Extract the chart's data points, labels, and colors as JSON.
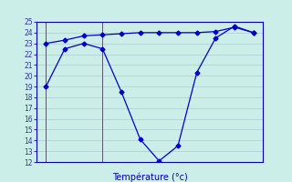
{
  "x_low": [
    0,
    1,
    2,
    3,
    4,
    5,
    6,
    7,
    8,
    9,
    10,
    11
  ],
  "line_low": [
    19.0,
    22.5,
    23.0,
    22.5,
    18.5,
    14.1,
    12.1,
    13.5,
    20.3,
    23.5,
    24.6,
    24.0
  ],
  "x_high": [
    0,
    1,
    2,
    3,
    4,
    5,
    6,
    7,
    8,
    9,
    10,
    11
  ],
  "line_high": [
    23.0,
    23.3,
    23.7,
    23.8,
    23.9,
    24.0,
    24.0,
    24.0,
    24.0,
    24.1,
    24.5,
    24.0
  ],
  "line_color": "#0000cc",
  "marker": "D",
  "marker_size": 2.5,
  "bg_color": "#cceee8",
  "grid_color": "#aacccc",
  "axis_color": "#0000aa",
  "tick_color": "#3333aa",
  "xlabel": "Température (°c)",
  "xlabel_color": "#0000aa",
  "ylim": [
    12,
    25
  ],
  "yticks": [
    12,
    13,
    14,
    15,
    16,
    17,
    18,
    19,
    20,
    21,
    22,
    23,
    24,
    25
  ],
  "xlim": [
    -0.5,
    11.5
  ],
  "lun_x": 0.0,
  "mar_x": 3.0,
  "vline_lun_x": 0.0,
  "vline_mar_x": 3.0
}
